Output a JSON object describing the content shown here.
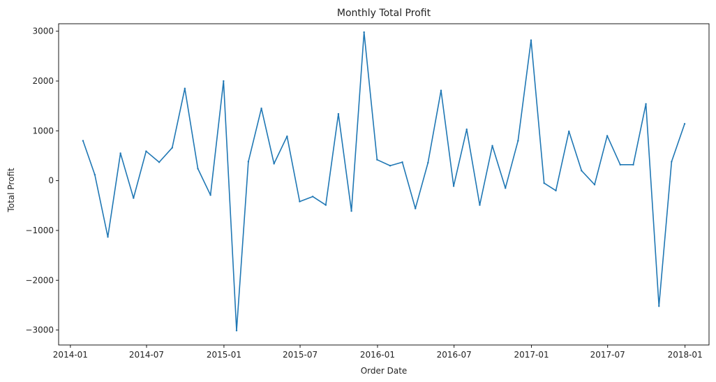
{
  "chart_data": {
    "type": "line",
    "title": "Monthly Total Profit",
    "xlabel": "Order Date",
    "ylabel": "Total Profit",
    "x_tick_labels": [
      "2014-01",
      "2014-07",
      "2015-01",
      "2015-07",
      "2016-01",
      "2016-07",
      "2017-01",
      "2017-07",
      "2018-01"
    ],
    "y_ticks": [
      -3000,
      -2000,
      -1000,
      0,
      1000,
      2000,
      3000
    ],
    "y_tick_labels": [
      "−3000",
      "−2000",
      "−1000",
      "0",
      "1000",
      "2000",
      "3000"
    ],
    "xlim": [
      "2013-12-04",
      "2018-02-27"
    ],
    "ylim": [
      -3300,
      3150
    ],
    "grid": false,
    "colors": {
      "line": "#1f77b4",
      "axis": "#000000",
      "text": "#222222"
    },
    "series": [
      {
        "x": [
          "2014-01-31",
          "2014-02-28",
          "2014-03-31",
          "2014-04-30",
          "2014-05-31",
          "2014-06-30",
          "2014-07-31",
          "2014-08-31",
          "2014-09-30",
          "2014-10-31",
          "2014-11-30",
          "2014-12-31",
          "2015-01-31",
          "2015-02-28",
          "2015-03-31",
          "2015-04-30",
          "2015-05-31",
          "2015-06-30",
          "2015-07-31",
          "2015-08-31",
          "2015-09-30",
          "2015-10-31",
          "2015-11-30",
          "2015-12-31",
          "2016-01-31",
          "2016-02-29",
          "2016-03-31",
          "2016-04-30",
          "2016-05-31",
          "2016-06-30",
          "2016-07-31",
          "2016-08-31",
          "2016-09-30",
          "2016-10-31",
          "2016-11-30",
          "2016-12-31",
          "2017-01-31",
          "2017-02-28",
          "2017-03-31",
          "2017-04-30",
          "2017-05-31",
          "2017-06-30",
          "2017-07-31",
          "2017-08-31",
          "2017-09-30",
          "2017-10-31",
          "2017-11-30",
          "2017-12-31"
        ],
        "values": [
          800,
          120,
          -1130,
          550,
          -350,
          590,
          370,
          660,
          1850,
          240,
          -290,
          2000,
          -3010,
          380,
          1450,
          340,
          890,
          -420,
          -320,
          -490,
          1340,
          -610,
          2980,
          420,
          300,
          370,
          -560,
          360,
          1810,
          -110,
          1030,
          -490,
          700,
          -150,
          800,
          2820,
          -50,
          -200,
          990,
          200,
          -80,
          900,
          320,
          320,
          1540,
          -2520,
          380,
          1140
        ]
      }
    ]
  }
}
